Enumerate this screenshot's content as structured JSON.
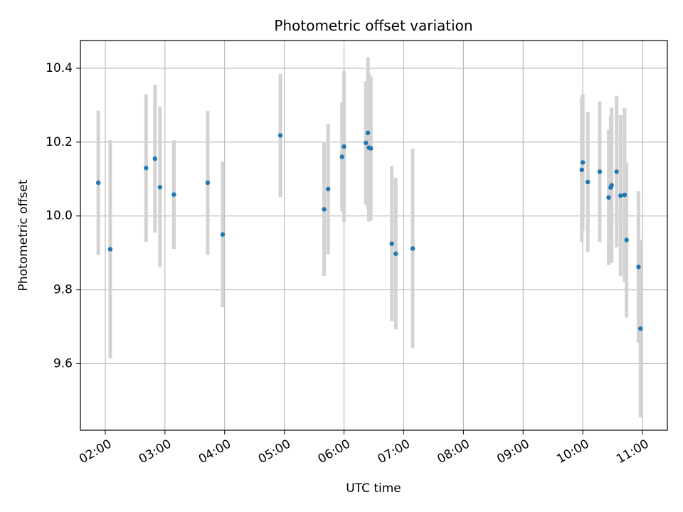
{
  "chart_data": {
    "type": "scatter",
    "title": "Photometric offset variation",
    "xlabel": "UTC time",
    "ylabel": "Photometric offset",
    "grid": true,
    "xlim": [
      "01:35",
      "11:25"
    ],
    "ylim": [
      9.42,
      10.475
    ],
    "xticks": [
      "02:00",
      "03:00",
      "04:00",
      "05:00",
      "06:00",
      "07:00",
      "08:00",
      "09:00",
      "10:00",
      "11:00"
    ],
    "yticks": [
      9.6,
      9.8,
      10.0,
      10.2,
      10.4
    ],
    "ytick_labels": [
      "9.6",
      "9.8",
      "10.0",
      "10.2",
      "10.4"
    ],
    "point_color": "#1f77b4",
    "errorbar_color": "#d3d3d3",
    "points": [
      {
        "x": "01:53",
        "y": 10.09,
        "err": 0.195
      },
      {
        "x": "02:05",
        "y": 9.91,
        "err": 0.295
      },
      {
        "x": "02:41",
        "y": 10.13,
        "err": 0.2
      },
      {
        "x": "02:50",
        "y": 10.155,
        "err": 0.2
      },
      {
        "x": "02:55",
        "y": 10.078,
        "err": 0.217
      },
      {
        "x": "03:09",
        "y": 10.058,
        "err": 0.147
      },
      {
        "x": "03:43",
        "y": 10.09,
        "err": 0.195
      },
      {
        "x": "03:58",
        "y": 9.95,
        "err": 0.197
      },
      {
        "x": "04:56",
        "y": 10.218,
        "err": 0.167
      },
      {
        "x": "05:40",
        "y": 10.018,
        "err": 0.18
      },
      {
        "x": "05:44",
        "y": 10.073,
        "err": 0.177
      },
      {
        "x": "05:58",
        "y": 10.16,
        "err": 0.148
      },
      {
        "x": "06:00",
        "y": 10.188,
        "err": 0.205
      },
      {
        "x": "06:22",
        "y": 10.198,
        "err": 0.167
      },
      {
        "x": "06:24",
        "y": 10.225,
        "err": 0.205
      },
      {
        "x": "06:25",
        "y": 10.185,
        "err": 0.2
      },
      {
        "x": "06:27",
        "y": 10.183,
        "err": 0.195
      },
      {
        "x": "06:48",
        "y": 9.925,
        "err": 0.21
      },
      {
        "x": "06:52",
        "y": 9.898,
        "err": 0.205
      },
      {
        "x": "07:09",
        "y": 9.912,
        "err": 0.27
      },
      {
        "x": "09:59",
        "y": 10.125,
        "err": 0.195
      },
      {
        "x": "10:00",
        "y": 10.145,
        "err": 0.185
      },
      {
        "x": "10:05",
        "y": 10.092,
        "err": 0.19
      },
      {
        "x": "10:17",
        "y": 10.12,
        "err": 0.19
      },
      {
        "x": "10:26",
        "y": 10.05,
        "err": 0.183
      },
      {
        "x": "10:28",
        "y": 10.077,
        "err": 0.195
      },
      {
        "x": "10:29",
        "y": 10.083,
        "err": 0.21
      },
      {
        "x": "10:34",
        "y": 10.12,
        "err": 0.205
      },
      {
        "x": "10:38",
        "y": 10.055,
        "err": 0.218
      },
      {
        "x": "10:42",
        "y": 10.057,
        "err": 0.235
      },
      {
        "x": "10:44",
        "y": 9.935,
        "err": 0.21
      },
      {
        "x": "10:56",
        "y": 9.862,
        "err": 0.205
      },
      {
        "x": "10:58",
        "y": 9.695,
        "err": 0.24
      }
    ]
  }
}
